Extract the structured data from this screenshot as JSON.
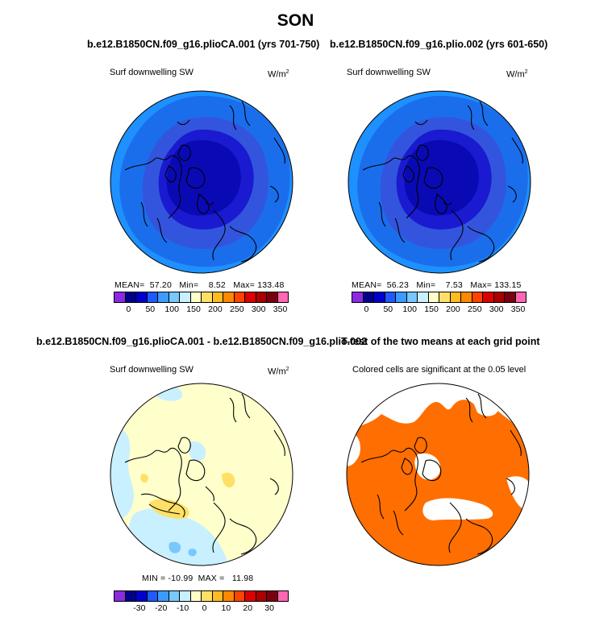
{
  "title": "SON",
  "panels": [
    {
      "title": "b.e12.B1850CN.f09_g16.plioCA.001 (yrs 701-750)",
      "variable": "Surf downwelling SW",
      "units": "W/m",
      "units_sup": "2",
      "stats": {
        "mean_label": "MEAN=",
        "mean": "57.20",
        "min_label": "Min=",
        "min": "8.52",
        "max_label": "Max=",
        "max": "133.48"
      }
    },
    {
      "title": "b.e12.B1850CN.f09_g16.plio.002 (yrs 601-650)",
      "variable": "Surf downwelling SW",
      "units": "W/m",
      "units_sup": "2",
      "stats": {
        "mean_label": "MEAN=",
        "mean": "56.23",
        "min_label": "Min=",
        "min": "7.53",
        "max_label": "Max=",
        "max": "133.15"
      }
    },
    {
      "title": "b.e12.B1850CN.f09_g16.plioCA.001 - b.e12.B1850CN.f09_g16.plio.002",
      "variable": "Surf downwelling SW",
      "units": "W/m",
      "units_sup": "2",
      "stats": {
        "min_label": "MIN =",
        "min": "-10.99",
        "max_label": "MAX =",
        "max": "11.98"
      }
    },
    {
      "title": "T-test of the two means at each grid point",
      "subtitle": "Colored cells are significant at the 0.05 level"
    }
  ],
  "abs_colorbar": {
    "ticks": [
      "0",
      "50",
      "100",
      "150",
      "200",
      "250",
      "300",
      "350"
    ],
    "colors": [
      "#8a2be2",
      "#00008b",
      "#0000cd",
      "#1e5aff",
      "#3c9bff",
      "#78c8ff",
      "#c8f0ff",
      "#ffffcc",
      "#ffe066",
      "#ffbb22",
      "#ff8800",
      "#ff4400",
      "#dd0000",
      "#aa0000",
      "#7a0010",
      "#ff66b3"
    ]
  },
  "diff_colorbar": {
    "ticks": [
      "-30",
      "-20",
      "-10",
      "0",
      "10",
      "20",
      "30"
    ],
    "colors": [
      "#8a2be2",
      "#00008b",
      "#0000cd",
      "#1e5aff",
      "#3c9bff",
      "#78c8ff",
      "#c8f0ff",
      "#ffffcc",
      "#ffe066",
      "#ffbb22",
      "#ff8800",
      "#ff4400",
      "#dd0000",
      "#aa0000",
      "#7a0010",
      "#ff66b3"
    ]
  },
  "map_colors": {
    "ring1": "#1e90ff",
    "ring2": "#1a6eec",
    "ring3": "#3355dd",
    "ring4": "#1a1ad0",
    "core": "#0a0ab4",
    "diff_bg": "#ffffcc",
    "diff_blue": "#c8f0ff",
    "diff_blue2": "#78c8ff",
    "diff_yellow": "#ffe066",
    "ttest": "#ff6e00"
  }
}
